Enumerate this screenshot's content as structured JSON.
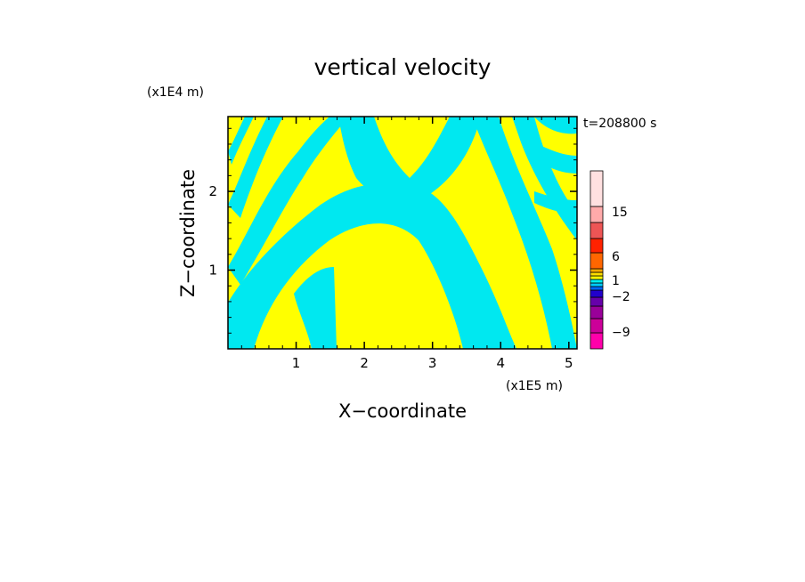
{
  "chart_data": {
    "type": "heatmap",
    "title": "vertical velocity",
    "xlabel": "X−coordinate",
    "ylabel": "Z−coordinate",
    "x_scale_label": "(x1E5 m)",
    "y_scale_label": "(x1E4 m)",
    "time_label": "t=208800 s",
    "xlim": [
      0,
      5.12
    ],
    "ylim": [
      0,
      2.95
    ],
    "x_ticks": [
      1,
      2,
      3,
      4,
      5
    ],
    "y_ticks": [
      1,
      2
    ],
    "x_tick_labels": [
      "1",
      "2",
      "3",
      "4",
      "5"
    ],
    "y_tick_labels": [
      "1",
      "2"
    ],
    "colorbar": {
      "tick_labels": [
        "15",
        "6",
        "1",
        "−2",
        "−9"
      ],
      "levels_colors": [
        "#ff00aa",
        "#cc0099",
        "#990099",
        "#6600aa",
        "#2200cc",
        "#0066ff",
        "#00ccff",
        "#00f0f0",
        "#ffff00",
        "#ffdd00",
        "#ffaa00",
        "#ff6600",
        "#ff2200",
        "#ee5555",
        "#ffaaaa",
        "#ffe0e0"
      ]
    },
    "colors": {
      "negative_fill": "#00e8f0",
      "positive_fill": "#ffff00"
    }
  }
}
